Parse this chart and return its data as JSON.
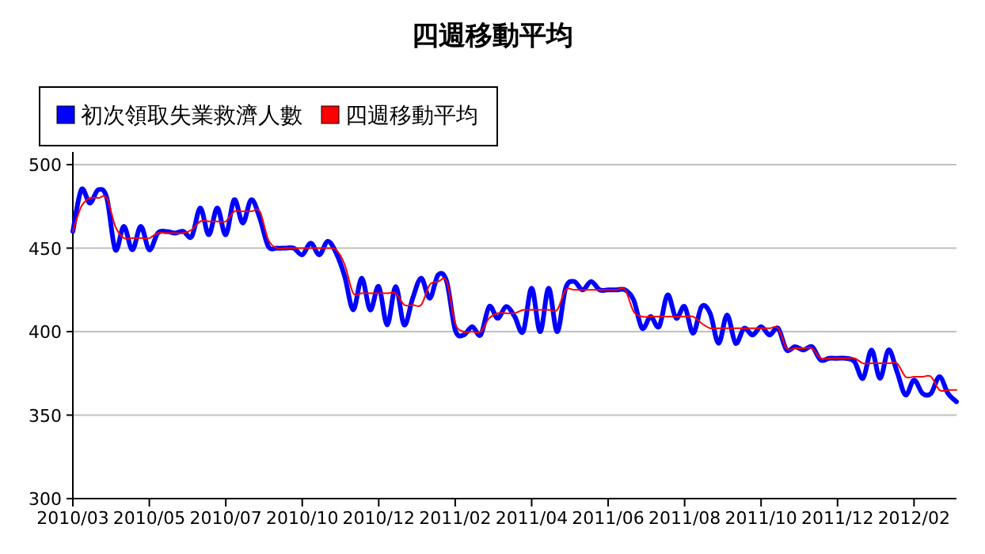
{
  "chart_data": {
    "type": "line",
    "title": "四週移動平均",
    "categories": [
      "2010/03",
      null,
      null,
      null,
      null,
      null,
      null,
      null,
      null,
      "2010/05",
      null,
      null,
      null,
      null,
      null,
      null,
      null,
      null,
      "2010/07",
      null,
      null,
      null,
      null,
      null,
      null,
      null,
      null,
      "2010/10",
      null,
      null,
      null,
      null,
      null,
      null,
      null,
      null,
      "2010/12",
      null,
      null,
      null,
      null,
      null,
      null,
      null,
      null,
      "2011/02",
      null,
      null,
      null,
      null,
      null,
      null,
      null,
      null,
      "2011/04",
      null,
      null,
      null,
      null,
      null,
      null,
      null,
      null,
      "2011/06",
      null,
      null,
      null,
      null,
      null,
      null,
      null,
      null,
      "2011/08",
      null,
      null,
      null,
      null,
      null,
      null,
      null,
      null,
      "2011/10",
      null,
      null,
      null,
      null,
      null,
      null,
      null,
      null,
      "2011/12",
      null,
      null,
      null,
      null,
      null,
      null,
      null,
      null,
      "2012/02",
      null,
      null,
      null,
      null,
      null
    ],
    "series": [
      {
        "name": "初次領取失業救濟人數",
        "color": "#0000ff",
        "values": [
          460,
          485,
          477,
          485,
          480,
          449,
          463,
          449,
          463,
          449,
          459,
          460,
          459,
          460,
          457,
          474,
          458,
          474,
          458,
          479,
          465,
          479,
          468,
          451,
          450,
          450,
          450,
          446,
          453,
          446,
          454,
          447,
          433,
          413,
          432,
          413,
          427,
          404,
          427,
          404,
          420,
          432,
          420,
          434,
          430,
          401,
          398,
          403,
          398,
          415,
          408,
          415,
          409,
          400,
          426,
          400,
          426,
          400,
          426,
          430,
          425,
          430,
          425,
          425,
          425,
          425,
          419,
          402,
          409,
          403,
          422,
          408,
          415,
          399,
          415,
          411,
          393,
          410,
          393,
          402,
          398,
          403,
          398,
          402,
          389,
          391,
          389,
          391,
          383,
          384,
          384,
          384,
          382,
          372,
          389,
          372,
          389,
          376,
          362,
          371,
          363,
          363,
          373,
          363,
          358
        ]
      },
      {
        "name": "四週移動平均",
        "color": "#ff0000",
        "values": [
          460,
          475,
          480,
          480,
          480,
          463,
          456,
          456,
          456,
          456,
          459,
          459,
          459,
          459,
          461,
          466,
          466,
          466,
          466,
          472,
          472,
          472,
          472,
          455,
          450,
          450,
          450,
          450,
          450,
          450,
          450,
          449,
          440,
          423,
          423,
          423,
          423,
          423,
          423,
          416,
          416,
          416,
          428,
          430,
          430,
          405,
          400,
          400,
          400,
          408,
          411,
          411,
          411,
          413,
          413,
          413,
          413,
          413,
          425,
          425,
          425,
          425,
          425,
          425,
          425,
          425,
          412,
          409,
          409,
          409,
          409,
          409,
          409,
          409,
          405,
          402,
          402,
          402,
          402,
          402,
          402,
          402,
          402,
          402,
          390,
          390,
          390,
          390,
          384,
          384,
          384,
          384,
          384,
          381,
          381,
          381,
          381,
          381,
          373,
          373,
          373,
          373,
          365,
          365,
          365
        ]
      }
    ],
    "ylim": [
      300,
      500
    ],
    "yticks": [
      300,
      350,
      400,
      450,
      500
    ],
    "grid": "y",
    "legend": "top left"
  }
}
